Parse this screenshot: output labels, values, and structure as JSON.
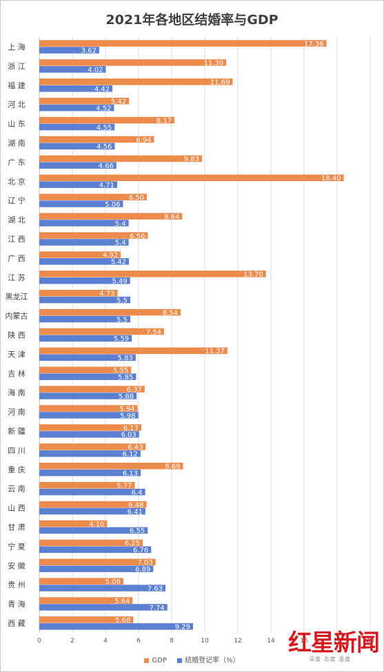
{
  "title": "2021年各地区结婚率与GDP",
  "chart_data": {
    "type": "bar",
    "orientation": "horizontal",
    "categories": [
      "上 海",
      "浙 江",
      "福 建",
      "河 北",
      "山 东",
      "湖 南",
      "广 东",
      "北 京",
      "辽 宁",
      "湖 北",
      "江 西",
      "广 西",
      "江 苏",
      "黑龙江",
      "内蒙古",
      "陕 西",
      "天 津",
      "吉 林",
      "海 南",
      "河 南",
      "新 疆",
      "四 川",
      "重 庆",
      "云 南",
      "山 西",
      "甘 肃",
      "宁 夏",
      "安 徽",
      "贵 州",
      "青 海",
      "西 藏"
    ],
    "series": [
      {
        "name": "GDP",
        "color": "#ED8B4D",
        "values": [
          17.36,
          11.3,
          11.69,
          5.42,
          8.17,
          6.94,
          9.83,
          18.4,
          6.5,
          8.64,
          6.56,
          4.92,
          13.7,
          4.73,
          8.54,
          7.54,
          11.37,
          5.55,
          6.37,
          5.94,
          6.17,
          6.43,
          8.69,
          5.77,
          6.48,
          4.1,
          6.25,
          7.03,
          5.08,
          5.64,
          5.68
        ],
        "labels": [
          "17.36",
          "11.30",
          "11.69",
          "5.42",
          "8.17",
          "6.94",
          "9.83",
          "18.40",
          "6.50",
          "8.64",
          "6.56",
          "4.92",
          "13.70",
          "4.73",
          "8.54",
          "7.54",
          "11.37",
          "5.55",
          "6.37",
          "5.94",
          "6.17",
          "6.43",
          "8.69",
          "5.77",
          "6.48",
          "4.10",
          "6.25",
          "7.03",
          "5.08",
          "5.64",
          "5.68"
        ]
      },
      {
        "name": "结婚登记率（%）",
        "color": "#5B7FD1",
        "values": [
          3.62,
          4.02,
          4.42,
          4.52,
          4.55,
          4.56,
          4.66,
          4.71,
          5.06,
          5.4,
          5.4,
          5.42,
          5.49,
          5.5,
          5.5,
          5.59,
          5.83,
          5.85,
          5.88,
          5.98,
          6.03,
          6.12,
          6.13,
          6.4,
          6.41,
          6.55,
          6.76,
          6.89,
          7.63,
          7.74,
          9.29
        ],
        "labels": [
          "3.62",
          "4.02",
          "4.42",
          "4.52",
          "4.55",
          "4.56",
          "4.66",
          "4.71",
          "5.06",
          "5.4",
          "5.4",
          "5.42",
          "5.49",
          "5.5",
          "5.5",
          "5.59",
          "5.83",
          "5.85",
          "5.88",
          "5.98",
          "6.03",
          "6.12",
          "6.13",
          "6.4",
          "6.41",
          "6.55",
          "6.76",
          "6.89",
          "7.63",
          "7.74",
          "9.29"
        ]
      }
    ],
    "xlim": [
      0,
      20
    ],
    "xticks": [
      "0",
      "2",
      "4",
      "6",
      "8",
      "10",
      "12",
      "14",
      "16",
      "18",
      "20"
    ],
    "grid": true,
    "legend_position": "bottom"
  },
  "watermark": {
    "main": "红星新闻",
    "sub": "深度 态度 温度"
  }
}
